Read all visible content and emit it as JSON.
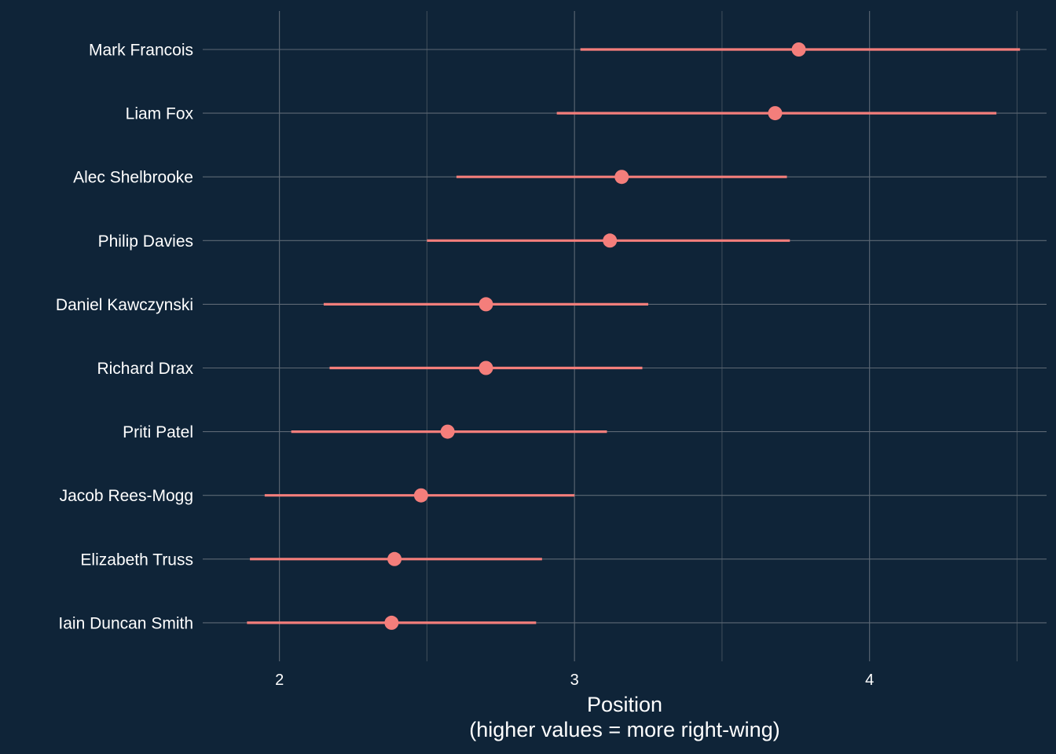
{
  "chart_data": {
    "type": "scatter",
    "subtype": "dot-with-interval",
    "title": "",
    "xlabel_line1": "Position",
    "xlabel_line2": "(higher values = more right-wing)",
    "ylabel": "",
    "xlim": [
      1.74,
      4.6
    ],
    "x_ticks": [
      2,
      3,
      4
    ],
    "x_minor_ticks": [
      2.5,
      3.5,
      4.5
    ],
    "grid": true,
    "color": "#f47e7b",
    "background": "#0f2438",
    "points": [
      {
        "name": "Mark Francois",
        "x": 3.76,
        "low": 3.02,
        "high": 4.51
      },
      {
        "name": "Liam Fox",
        "x": 3.68,
        "low": 2.94,
        "high": 4.43
      },
      {
        "name": "Alec Shelbrooke",
        "x": 3.16,
        "low": 2.6,
        "high": 3.72
      },
      {
        "name": "Philip Davies",
        "x": 3.12,
        "low": 2.5,
        "high": 3.73
      },
      {
        "name": "Daniel Kawczynski",
        "x": 2.7,
        "low": 2.15,
        "high": 3.25
      },
      {
        "name": "Richard Drax",
        "x": 2.7,
        "low": 2.17,
        "high": 3.23
      },
      {
        "name": "Priti Patel",
        "x": 2.57,
        "low": 2.04,
        "high": 3.11
      },
      {
        "name": "Jacob Rees-Mogg",
        "x": 2.48,
        "low": 1.95,
        "high": 3.0
      },
      {
        "name": "Elizabeth Truss",
        "x": 2.39,
        "low": 1.9,
        "high": 2.89
      },
      {
        "name": "Iain Duncan Smith",
        "x": 2.38,
        "low": 1.89,
        "high": 2.87
      }
    ]
  }
}
